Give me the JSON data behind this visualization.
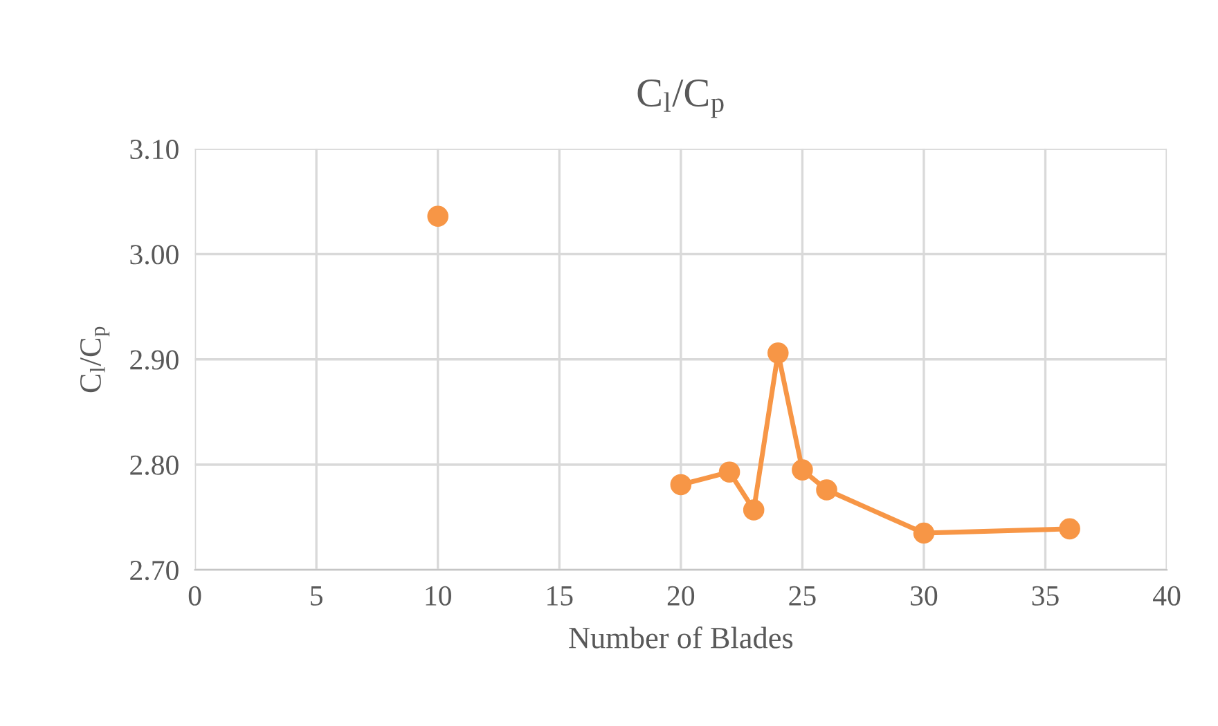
{
  "chart_data": {
    "type": "line",
    "title": "C$_{l}$/C$_{p}$",
    "xlabel": "Number of Blades",
    "ylabel": "C$_{l}$/C$_{p}$",
    "series": [
      {
        "type": "scatter",
        "color": "#f79646",
        "x": [
          10
        ],
        "values": [
          3.036
        ]
      },
      {
        "color": "#f79646",
        "x": [
          20,
          22,
          23,
          24,
          25,
          26,
          30,
          36
        ],
        "values": [
          2.781,
          2.793,
          2.757,
          2.906,
          2.795,
          2.776,
          2.735,
          2.739
        ]
      }
    ],
    "xlim": [
      0,
      40
    ],
    "xticks": [
      0,
      5,
      10,
      15,
      20,
      25,
      30,
      35,
      40
    ],
    "ylim": [
      2.7,
      3.1
    ],
    "yticks": [
      {
        "value": 2.7,
        "label": "2.70"
      },
      {
        "value": 2.8,
        "label": "2.80"
      },
      {
        "value": 2.9,
        "label": "2.90"
      },
      {
        "value": 3.0,
        "label": "3.00"
      },
      {
        "value": 3.1,
        "label": "3.10"
      }
    ],
    "grid": true,
    "marker": "circle",
    "line_style": "solid"
  }
}
